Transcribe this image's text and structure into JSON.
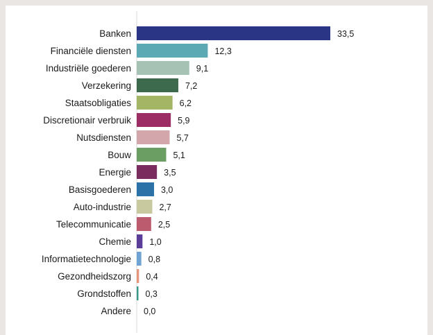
{
  "chart_data": {
    "type": "bar",
    "orientation": "horizontal",
    "title": "",
    "xlabel": "",
    "ylabel": "",
    "grid": false,
    "legend": "none",
    "xlim": [
      0,
      33.5
    ],
    "categories": [
      "Banken",
      "Financiële diensten",
      "Industriële goederen",
      "Verzekering",
      "Staatsobligaties",
      "Discretionair verbruik",
      "Nutsdiensten",
      "Bouw",
      "Energie",
      "Basisgoederen",
      "Auto-industrie",
      "Telecommunicatie",
      "Chemie",
      "Informatietechnologie",
      "Gezondheidszorg",
      "Grondstoffen",
      "Andere"
    ],
    "values": [
      33.5,
      12.3,
      9.1,
      7.2,
      6.2,
      5.9,
      5.7,
      5.1,
      3.5,
      3.0,
      2.7,
      2.5,
      1.0,
      0.8,
      0.4,
      0.3,
      0.0
    ],
    "value_labels": [
      "33,5",
      "12,3",
      "9,1",
      "7,2",
      "6,2",
      "5,9",
      "5,7",
      "5,1",
      "3,5",
      "3,0",
      "2,7",
      "2,5",
      "1,0",
      "0,8",
      "0,4",
      "0,3",
      "0,0"
    ],
    "colors": [
      "#2b3585",
      "#5ba9b3",
      "#a6c2b5",
      "#3d6a4c",
      "#a4b566",
      "#9b2c64",
      "#d2a6aa",
      "#6b9e63",
      "#7a2c5e",
      "#2a72a8",
      "#c9c9a0",
      "#bd5b6e",
      "#5a3e9a",
      "#6ea3d3",
      "#e6967b",
      "#3a9a8a",
      "#888888"
    ]
  }
}
